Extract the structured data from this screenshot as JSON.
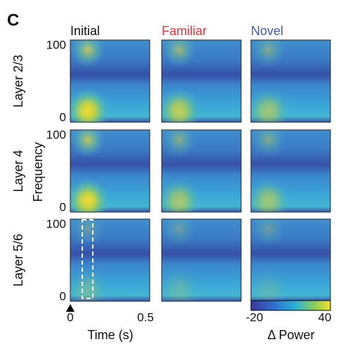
{
  "panel_label": "C",
  "columns": [
    "Initial",
    "Familiar",
    "Novel"
  ],
  "rows": [
    "Layer 2/3",
    "Layer 4",
    "Layer 5/6"
  ],
  "y_axis": {
    "label": "Frequency",
    "ticks": [
      "100",
      "0"
    ]
  },
  "x_axis": {
    "label": "Time (s)",
    "ticks": [
      "0",
      "0.5"
    ]
  },
  "colorbar": {
    "label": "Δ Power",
    "ticks": [
      "-20",
      "40"
    ]
  }
}
